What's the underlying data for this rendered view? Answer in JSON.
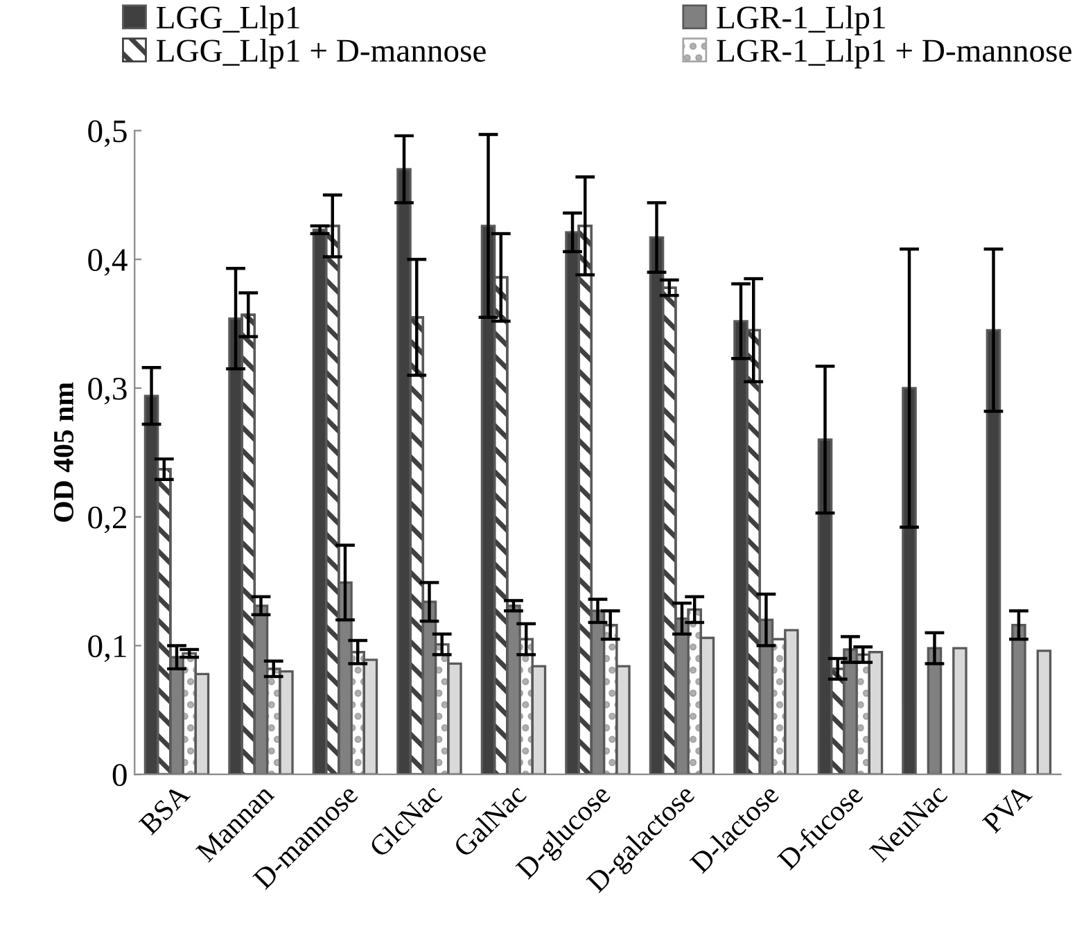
{
  "chart_data": {
    "type": "bar",
    "ylabel": "OD 405 nm",
    "categories": [
      "BSA",
      "Mannan",
      "D-mannose",
      "GlcNac",
      "GalNac",
      "D-glucose",
      "D-galactose",
      "D-lactose",
      "D-fucose",
      "NeuNac",
      "PVA"
    ],
    "series": [
      {
        "name": "LGG_Llp1",
        "color": "#404040",
        "values": [
          0.294,
          0.354,
          0.423,
          0.47,
          0.426,
          0.421,
          0.417,
          0.352,
          0.26,
          0.3,
          0.345
        ],
        "errors": [
          0.022,
          0.039,
          0.003,
          0.026,
          0.071,
          0.015,
          0.027,
          0.029,
          0.057,
          0.108,
          0.063
        ]
      },
      {
        "name": "LGG_Llp1 + D-mannose",
        "color": "#404040",
        "values": [
          0.237,
          0.357,
          0.426,
          0.355,
          0.386,
          0.426,
          0.378,
          0.345,
          0.082,
          null,
          null
        ],
        "errors": [
          0.008,
          0.017,
          0.024,
          0.045,
          0.034,
          0.038,
          0.006,
          0.04,
          0.008,
          null,
          null
        ]
      },
      {
        "name": "LGR-1_Llp1",
        "color": "#808080",
        "values": [
          0.091,
          0.131,
          0.149,
          0.134,
          0.131,
          0.127,
          0.121,
          0.12,
          0.097,
          0.098,
          0.116
        ],
        "errors": [
          0.009,
          0.007,
          0.029,
          0.015,
          0.004,
          0.009,
          0.012,
          0.02,
          0.01,
          0.012,
          0.011
        ]
      },
      {
        "name": "LGR-1_Llp1 + D-mannose",
        "color": "#a6a6a6",
        "values": [
          0.094,
          0.082,
          0.095,
          0.101,
          0.105,
          0.116,
          0.128,
          0.105,
          0.093,
          null,
          null
        ],
        "errors": [
          0.003,
          0.006,
          0.009,
          0.008,
          0.012,
          0.011,
          0.01,
          null,
          0.006,
          null,
          null
        ]
      },
      {
        "color": "#d9d9d9",
        "values": [
          0.078,
          0.08,
          0.089,
          0.086,
          0.084,
          0.084,
          0.106,
          0.112,
          0.095,
          0.098,
          0.096
        ]
      }
    ],
    "ylim": [
      0,
      0.5
    ],
    "yticks": [
      0,
      {
        "value": 0.1,
        "label": "0,1"
      },
      {
        "value": 0.2,
        "label": "0,2"
      },
      {
        "value": 0.3,
        "label": "0,3"
      },
      {
        "value": 0.4,
        "label": "0,4"
      },
      {
        "value": 0.5,
        "label": "0,5"
      }
    ],
    "grid": false,
    "legend": "top"
  }
}
